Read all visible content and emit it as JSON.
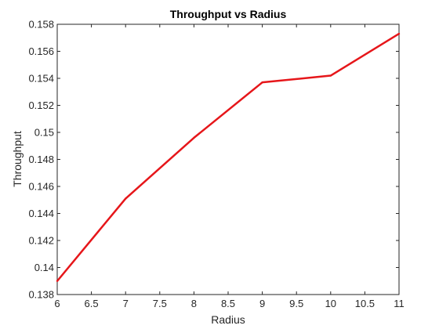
{
  "chart_data": {
    "type": "line",
    "title": "Throughput vs Radius",
    "xlabel": "Radius",
    "ylabel": "Throughput",
    "xlim": [
      6,
      11
    ],
    "ylim": [
      0.138,
      0.158
    ],
    "x_ticks": [
      "6",
      "6.5",
      "7",
      "7.5",
      "8",
      "8.5",
      "9",
      "9.5",
      "10",
      "10.5",
      "11"
    ],
    "y_ticks": [
      "0.138",
      "0.14",
      "0.142",
      "0.144",
      "0.146",
      "0.148",
      "0.15",
      "0.152",
      "0.154",
      "0.156",
      "0.158"
    ],
    "grid": false,
    "series": [
      {
        "color": "#e6161a",
        "x": [
          6,
          7,
          8,
          9,
          10,
          11
        ],
        "y": [
          0.139,
          0.1451,
          0.1496,
          0.1537,
          0.1542,
          0.1573
        ]
      }
    ]
  }
}
